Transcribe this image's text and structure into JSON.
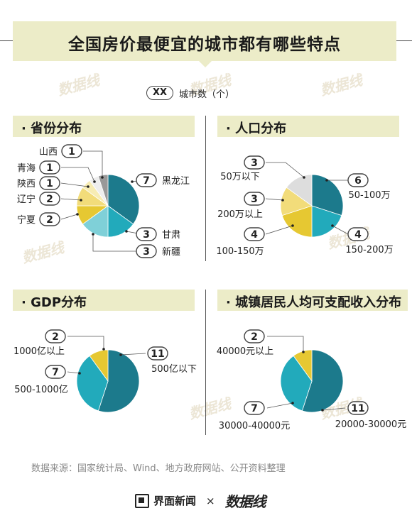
{
  "title": "全国房价最便宜的城市都有哪些特点",
  "legend": {
    "sample": "XX",
    "label": "城市数（个）"
  },
  "watermark": "数据线",
  "sections": {
    "province": "· 省份分布",
    "population": "· 人口分布",
    "gdp": "· GDP分布",
    "income": "· 城镇居民人均可支配收入分布"
  },
  "source": "数据来源：国家统计局、Wind、地方政府网站、公开资料整理",
  "footer": {
    "brand": "界面新闻",
    "times": "×",
    "partner": "数据线"
  },
  "chart_data": [
    {
      "type": "pie",
      "title": "省份分布",
      "slices": [
        {
          "label": "黑龙江",
          "value": 7,
          "color": "#1c7a8c"
        },
        {
          "label": "甘肃",
          "value": 3,
          "color": "#22aabb"
        },
        {
          "label": "新疆",
          "value": 3,
          "color": "#7fd0d8"
        },
        {
          "label": "宁夏",
          "value": 2,
          "color": "#e6c832"
        },
        {
          "label": "辽宁",
          "value": 2,
          "color": "#f2dc7a"
        },
        {
          "label": "陕西",
          "value": 1,
          "color": "#f7ecb4"
        },
        {
          "label": "青海",
          "value": 1,
          "color": "#eeeeee"
        },
        {
          "label": "山西",
          "value": 1,
          "color": "#999999"
        }
      ]
    },
    {
      "type": "pie",
      "title": "人口分布",
      "slices": [
        {
          "label": "50-100万",
          "value": 6,
          "color": "#1c7a8c"
        },
        {
          "label": "150-200万",
          "value": 4,
          "color": "#22aabb"
        },
        {
          "label": "100-150万",
          "value": 4,
          "color": "#e6c832"
        },
        {
          "label": "200万以上",
          "value": 3,
          "color": "#f2dc7a"
        },
        {
          "label": "50万以下",
          "value": 3,
          "color": "#dddddd"
        }
      ]
    },
    {
      "type": "pie",
      "title": "GDP分布",
      "slices": [
        {
          "label": "500亿以下",
          "value": 11,
          "color": "#1c7a8c"
        },
        {
          "label": "500-1000亿",
          "value": 7,
          "color": "#22aabb"
        },
        {
          "label": "1000亿以上",
          "value": 2,
          "color": "#e6c832"
        }
      ]
    },
    {
      "type": "pie",
      "title": "城镇居民人均可支配收入分布",
      "slices": [
        {
          "label": "20000-30000元",
          "value": 11,
          "color": "#1c7a8c"
        },
        {
          "label": "30000-40000元",
          "value": 7,
          "color": "#22aabb"
        },
        {
          "label": "40000元以上",
          "value": 2,
          "color": "#e6c832"
        }
      ]
    }
  ]
}
